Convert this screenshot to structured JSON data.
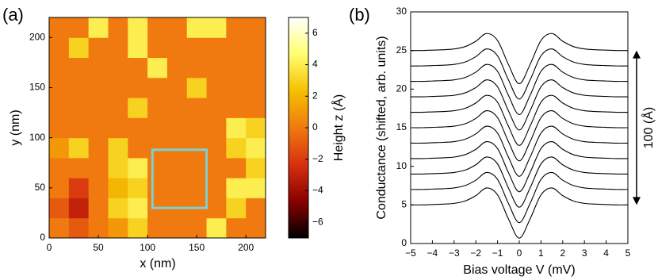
{
  "chart_data": [
    {
      "type": "heatmap",
      "panel_label": "(a)",
      "xlabel": "x (nm)",
      "ylabel": "y (nm)",
      "xbins": [
        0,
        20,
        40,
        60,
        80,
        100,
        120,
        140,
        160,
        180,
        200,
        220
      ],
      "ybins": [
        0,
        20,
        40,
        60,
        80,
        100,
        120,
        140,
        160,
        180,
        200,
        220
      ],
      "z": [
        [
          0,
          -1,
          0,
          1,
          3,
          0,
          0,
          0,
          4,
          0,
          0
        ],
        [
          -1,
          -3,
          0,
          3,
          4,
          0,
          0,
          0,
          0,
          3,
          0
        ],
        [
          0,
          -2,
          0,
          2,
          3,
          0,
          0,
          0,
          0,
          4,
          4
        ],
        [
          0,
          0,
          0,
          3,
          4,
          0,
          0,
          0,
          0,
          0,
          3
        ],
        [
          1,
          3,
          0,
          3,
          0,
          0,
          0,
          0,
          0,
          3,
          4
        ],
        [
          0,
          0,
          0,
          0,
          0,
          0,
          0,
          0,
          0,
          4,
          3
        ],
        [
          0,
          0,
          0,
          0,
          3,
          0,
          0,
          0,
          0,
          0,
          0
        ],
        [
          0,
          0,
          0,
          0,
          0,
          0,
          0,
          3,
          0,
          0,
          0
        ],
        [
          0,
          0,
          0,
          0,
          0,
          4,
          0,
          0,
          0,
          0,
          0
        ],
        [
          0,
          3,
          0,
          0,
          4,
          0,
          0,
          0,
          0,
          0,
          0
        ],
        [
          0,
          0,
          4,
          0,
          4,
          0,
          0,
          4,
          4,
          0,
          0
        ]
      ],
      "xlim": [
        0,
        220
      ],
      "ylim": [
        0,
        220
      ],
      "xticks": [
        0,
        50,
        100,
        150,
        200
      ],
      "yticks": [
        0,
        50,
        100,
        150,
        200
      ],
      "colormap": [
        "#000000",
        "#8a0000",
        "#d83010",
        "#f07a10",
        "#f5c000",
        "#ffff70",
        "#ffffff"
      ],
      "colorbar": {
        "label": "Height z (Å)",
        "lim": [
          -7,
          7
        ],
        "ticks": [
          {
            "value": -6,
            "label": "−6"
          },
          {
            "value": -4,
            "label": "−4"
          },
          {
            "value": -2,
            "label": "−2"
          },
          0,
          2,
          4,
          6
        ]
      },
      "highlight_box": {
        "x": [
          105,
          160
        ],
        "y": [
          30,
          88
        ],
        "color": "#7fcfcf"
      }
    },
    {
      "type": "line",
      "panel_label": "(b)",
      "xlabel": "Bias voltage V (mV)",
      "ylabel": "Conductance (shifted, arb. units)",
      "color": "#000000",
      "x": [
        -5,
        -4.5,
        -4,
        -3.5,
        -3,
        -2.5,
        -2,
        -1.5,
        -1,
        -0.5,
        0,
        0.5,
        1,
        1.5,
        2,
        2.5,
        3,
        3.5,
        4,
        4.5,
        5
      ],
      "series": [
        {
          "values": [
            5,
            5,
            5.05,
            5.1,
            5.2,
            5.5,
            6.2,
            7.2,
            6.3,
            3.2,
            0.7,
            3.2,
            6.3,
            7.2,
            6.2,
            5.5,
            5.2,
            5.1,
            5.05,
            5,
            5
          ]
        },
        {
          "values": [
            7,
            7,
            7.05,
            7.1,
            7.2,
            7.5,
            8.2,
            9.2,
            8.3,
            5.2,
            2.7,
            5.2,
            8.3,
            9.2,
            8.2,
            7.5,
            7.2,
            7.1,
            7.05,
            7,
            7
          ]
        },
        {
          "values": [
            9,
            9,
            9.05,
            9.1,
            9.2,
            9.5,
            10.2,
            11.2,
            10.3,
            7.2,
            4.7,
            7.2,
            10.3,
            11.2,
            10.2,
            9.5,
            9.2,
            9.1,
            9.05,
            9,
            9
          ]
        },
        {
          "values": [
            11,
            11,
            11.05,
            11.1,
            11.2,
            11.5,
            12.2,
            13.2,
            12.3,
            9.2,
            6.7,
            9.2,
            12.3,
            13.2,
            12.2,
            11.5,
            11.2,
            11.1,
            11.05,
            11,
            11
          ]
        },
        {
          "values": [
            13,
            13,
            13.05,
            13.1,
            13.2,
            13.5,
            14.2,
            15.2,
            14.3,
            11.2,
            8.7,
            11.2,
            14.3,
            15.2,
            14.2,
            13.5,
            13.2,
            13.1,
            13.05,
            13,
            13
          ]
        },
        {
          "values": [
            15,
            15,
            15.05,
            15.1,
            15.2,
            15.5,
            16.2,
            17.2,
            16.3,
            13.2,
            10.7,
            13.2,
            16.3,
            17.2,
            16.2,
            15.5,
            15.2,
            15.1,
            15.05,
            15,
            15
          ]
        },
        {
          "values": [
            17,
            17,
            17.05,
            17.1,
            17.2,
            17.5,
            18.2,
            19.2,
            18.3,
            15.2,
            12.7,
            15.2,
            18.3,
            19.2,
            18.2,
            17.5,
            17.2,
            17.1,
            17.05,
            17,
            17
          ]
        },
        {
          "values": [
            19,
            19,
            19.05,
            19.1,
            19.2,
            19.5,
            20.2,
            21.2,
            20.3,
            17.2,
            14.7,
            17.2,
            20.3,
            21.2,
            20.2,
            19.5,
            19.2,
            19.1,
            19.05,
            19,
            19
          ]
        },
        {
          "values": [
            21,
            21,
            21.05,
            21.1,
            21.2,
            21.5,
            22.2,
            23.2,
            22.3,
            19.2,
            16.7,
            19.2,
            22.3,
            23.2,
            22.2,
            21.5,
            21.2,
            21.1,
            21.05,
            21,
            21
          ]
        },
        {
          "values": [
            23,
            23,
            23.05,
            23.1,
            23.2,
            23.5,
            24.2,
            25.2,
            24.3,
            21.2,
            18.7,
            21.2,
            24.3,
            25.2,
            24.2,
            23.5,
            23.2,
            23.1,
            23.05,
            23,
            23
          ]
        },
        {
          "values": [
            25,
            25,
            25.05,
            25.1,
            25.2,
            25.5,
            26.2,
            27.2,
            26.3,
            23.2,
            20.7,
            23.2,
            26.3,
            27.2,
            26.2,
            25.5,
            25.2,
            25.1,
            25.05,
            25,
            25
          ]
        }
      ],
      "xlim": [
        -5,
        5
      ],
      "ylim": [
        0,
        30
      ],
      "xticks": [
        {
          "value": -5,
          "label": "−5"
        },
        {
          "value": -4,
          "label": "−4"
        },
        {
          "value": -3,
          "label": "−3"
        },
        {
          "value": -2,
          "label": "−2"
        },
        {
          "value": -1,
          "label": "−1"
        },
        0,
        1,
        2,
        3,
        4,
        5
      ],
      "yticks": [
        0,
        5,
        10,
        15,
        20,
        25,
        30
      ],
      "scale_arrow": {
        "label": "100 (Å)",
        "range": [
          5,
          25
        ]
      }
    }
  ]
}
